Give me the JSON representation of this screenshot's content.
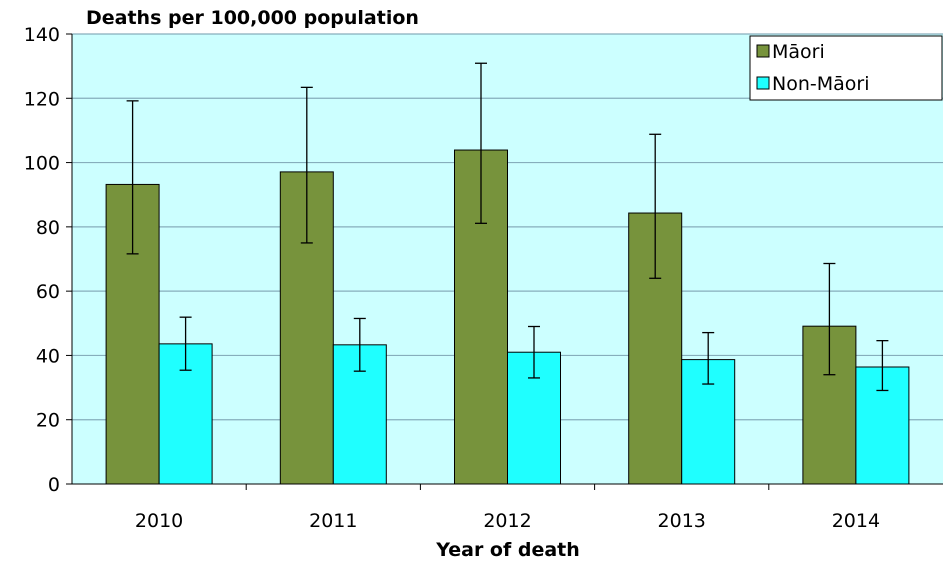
{
  "chart_data": {
    "type": "bar",
    "title": "Deaths per 100,000 population",
    "xlabel": "Year of death",
    "ylabel": "",
    "ylim": [
      0,
      140
    ],
    "yticks": [
      0,
      20,
      40,
      60,
      80,
      100,
      120,
      140
    ],
    "categories": [
      "2010",
      "2011",
      "2012",
      "2013",
      "2014"
    ],
    "grid": true,
    "legend_position": "top-right",
    "plot_background": "#ccffff",
    "series": [
      {
        "name": "Māori",
        "color": "#77933c",
        "values": [
          93.2,
          97.1,
          103.9,
          84.3,
          49.1
        ],
        "error_low": [
          71.6,
          75.0,
          81.1,
          64.0,
          34.0
        ],
        "error_high": [
          119.2,
          123.4,
          130.9,
          108.8,
          68.6
        ]
      },
      {
        "name": "Non-Māori",
        "color": "#1fffff",
        "values": [
          43.6,
          43.3,
          41.0,
          38.7,
          36.4
        ],
        "error_low": [
          35.4,
          35.1,
          33.0,
          31.1,
          29.1
        ],
        "error_high": [
          51.9,
          51.5,
          49.0,
          47.1,
          44.6
        ]
      }
    ]
  }
}
